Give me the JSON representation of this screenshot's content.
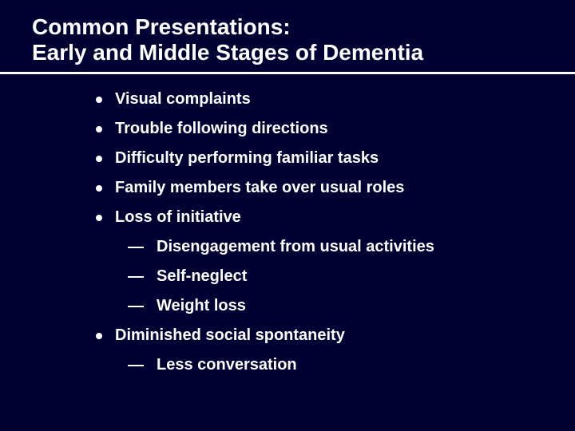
{
  "background_color": "#000033",
  "text_color": "#ffffff",
  "title": {
    "lines": [
      "Common Presentations:",
      "Early and Middle Stages of Dementia"
    ],
    "fontsize": 28,
    "weight": "bold",
    "underline_color": "#ffffff",
    "underline_width": 3
  },
  "body_fontsize": 20,
  "sub_fontsize": 20,
  "bullet": {
    "color": "#ffffff",
    "size": 8
  },
  "dash": {
    "color": "#ffffff",
    "width": 20,
    "height": 2
  },
  "bullets": [
    {
      "text": "Visual complaints",
      "subs": []
    },
    {
      "text": "Trouble following directions",
      "subs": []
    },
    {
      "text": "Difficulty performing familiar tasks",
      "subs": []
    },
    {
      "text": "Family members take over usual roles",
      "subs": []
    },
    {
      "text": "Loss of initiative",
      "subs": [
        "Disengagement from usual activities",
        "Self-neglect",
        "Weight loss"
      ]
    },
    {
      "text": "Diminished social spontaneity",
      "subs": [
        "Less conversation"
      ]
    }
  ]
}
